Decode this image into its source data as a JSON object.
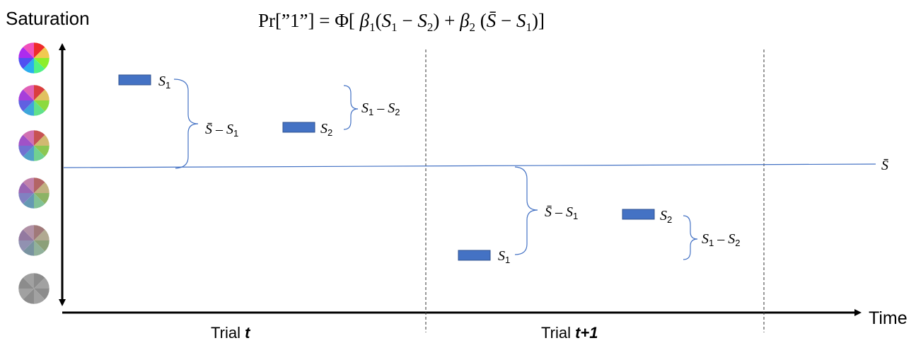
{
  "formula": {
    "pr": "Pr",
    "open_bracket": "[”1”] = Φ[ ",
    "beta": "β",
    "s": "S",
    "sub1": "1",
    "sub2": "2",
    "minus": " − ",
    "plus": " + "
  },
  "axes": {
    "y_label": "Saturation",
    "x_label": "Time"
  },
  "trials": {
    "trial_word": "Trial ",
    "trial1_var": "t",
    "trial2_var": "t+1"
  },
  "labels": {
    "s": "S",
    "sbar": "S̄",
    "sub1": "1",
    "sub2": "2",
    "dash": " – "
  },
  "colors": {
    "bar_fill": "#4472c4",
    "bar_stroke": "#2f528f",
    "mean_line": "#4472c4",
    "brace": "#4472c4",
    "axis": "#000000"
  },
  "saturation_levels": [
    1.0,
    0.8,
    0.6,
    0.4,
    0.2,
    0.0
  ]
}
